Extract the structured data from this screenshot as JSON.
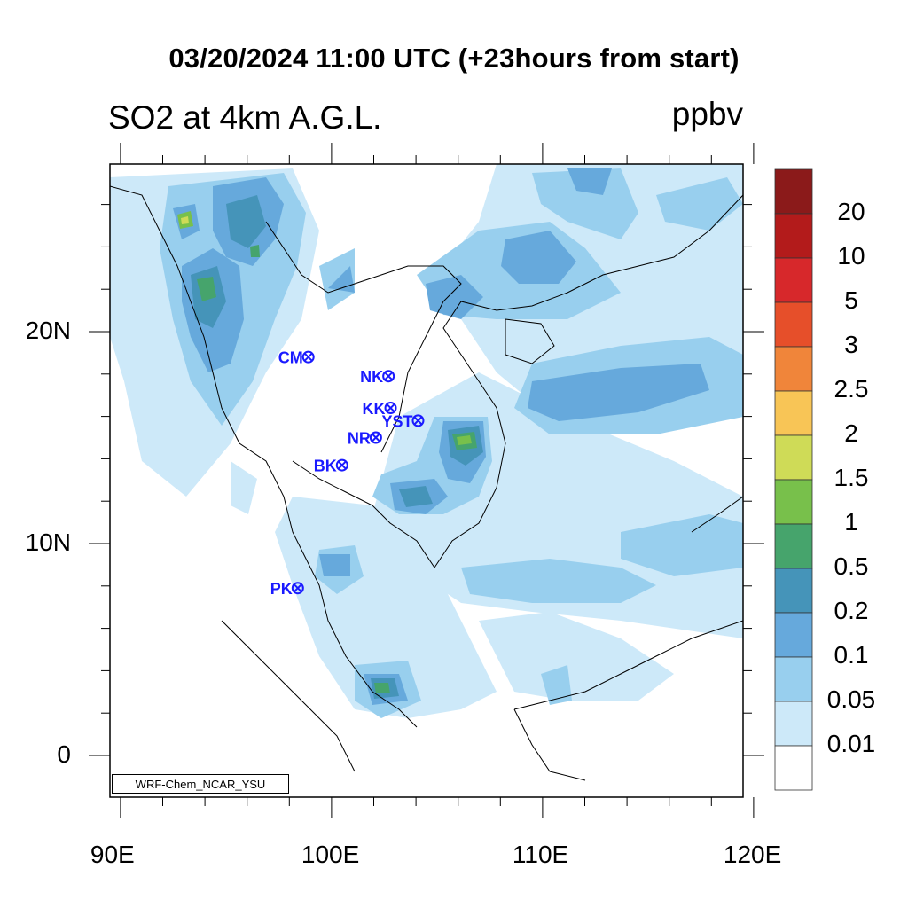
{
  "title": "03/20/2024 11:00 UTC (+23hours from start)",
  "subtitle": "SO2 at 4km A.G.L.",
  "units": "ppbv",
  "credit": "WRF-Chem_NCAR_YSU",
  "axes": {
    "x_ticks": [
      "90E",
      "100E",
      "110E",
      "120E"
    ],
    "y_ticks": [
      "20N",
      "10N",
      "0"
    ]
  },
  "colorbar": {
    "labels": [
      "20",
      "10",
      "5",
      "3",
      "2.5",
      "2",
      "1.5",
      "1",
      "0.5",
      "0.2",
      "0.1",
      "0.05",
      "0.01"
    ],
    "colors": [
      "#8b1a1a",
      "#b31b1b",
      "#d7282b",
      "#e64f2a",
      "#f0853a",
      "#f8c556",
      "#cfdb57",
      "#78c04b",
      "#46a46c",
      "#4594b9",
      "#66a9dc",
      "#98cfee",
      "#cde9f9",
      "#ffffff"
    ]
  },
  "stations": [
    {
      "label": "CM",
      "lon": 98.9,
      "lat": 18.8
    },
    {
      "label": "NK",
      "lon": 102.7,
      "lat": 17.9
    },
    {
      "label": "KK",
      "lon": 102.8,
      "lat": 16.4
    },
    {
      "label": "YST",
      "lon": 104.1,
      "lat": 15.8
    },
    {
      "label": "NR",
      "lon": 102.1,
      "lat": 15.0
    },
    {
      "label": "BK",
      "lon": 100.5,
      "lat": 13.7
    },
    {
      "label": "PK",
      "lon": 98.4,
      "lat": 7.9
    }
  ]
}
